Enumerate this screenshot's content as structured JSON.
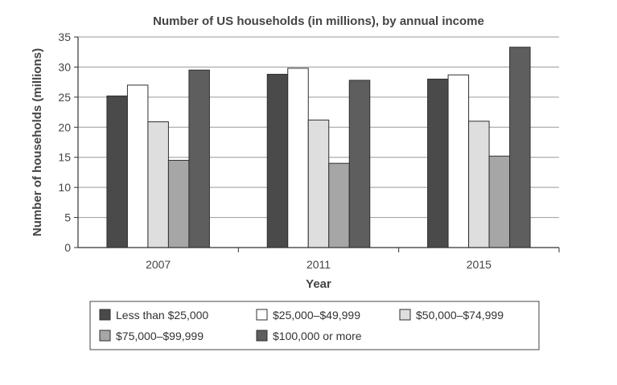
{
  "chart_data": {
    "type": "bar",
    "title": "Number of US households (in millions), by annual income",
    "xlabel": "Year",
    "ylabel": "Number of households (millions)",
    "categories": [
      "2007",
      "2011",
      "2015"
    ],
    "ylim": [
      0,
      35
    ],
    "yticks": [
      0,
      5,
      10,
      15,
      20,
      25,
      30,
      35
    ],
    "grid": true,
    "legend_position": "bottom",
    "series": [
      {
        "name": "Less than $25,000",
        "color": "#4a4a4a",
        "values": [
          25.2,
          28.8,
          28.0
        ]
      },
      {
        "name": "$25,000–$49,999",
        "color": "#ffffff",
        "values": [
          27.0,
          29.8,
          28.7
        ]
      },
      {
        "name": "$50,000–$74,999",
        "color": "#dedede",
        "values": [
          20.9,
          21.2,
          21.0
        ]
      },
      {
        "name": "$75,000–$99,999",
        "color": "#a6a6a6",
        "values": [
          14.5,
          14.0,
          15.2
        ]
      },
      {
        "name": "$100,000 or more",
        "color": "#5e5e5e",
        "values": [
          29.5,
          27.8,
          33.3
        ]
      }
    ]
  }
}
